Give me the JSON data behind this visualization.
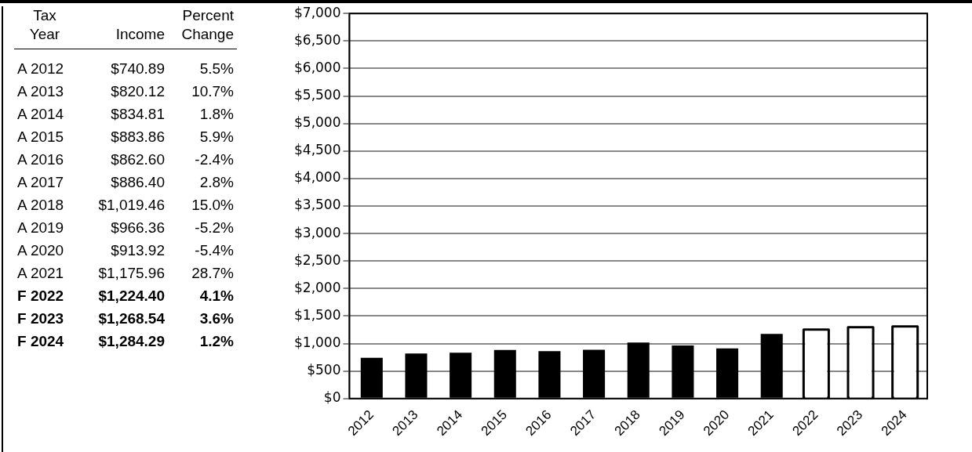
{
  "chart_data": [
    {
      "type": "other",
      "annotations": [
        "Tax Year",
        "Income",
        "Percent Change",
        "A 2012",
        "$740.89",
        "5.5%",
        "A 2013",
        "$820.12",
        "10.7%",
        "A 2014",
        "$834.81",
        "1.8%",
        "A 2015",
        "$883.86",
        "5.9%",
        "A 2016",
        "$862.60",
        "-2.4%",
        "A 2017",
        "$886.40",
        "2.8%",
        "A 2018",
        "$1,019.46",
        "15.0%",
        "A 2019",
        "$966.36",
        "-5.2%",
        "A 2020",
        "$913.92",
        "-5.4%",
        "A 2021",
        "$1,175.96",
        "28.7%",
        "F 2022",
        "$1,224.40",
        "4.1%",
        "F 2023",
        "$1,268.54",
        "3.6%",
        "F 2024",
        "$1,284.29",
        "1.2%"
      ]
    },
    {
      "type": "bar",
      "categories": [
        "2012",
        "2013",
        "2014",
        "2015",
        "2016",
        "2017",
        "2018",
        "2019",
        "2020",
        "2021",
        "2022",
        "2023",
        "2024"
      ],
      "values": [
        740.89,
        820.12,
        834.81,
        883.86,
        862.6,
        886.4,
        1019.46,
        966.36,
        913.92,
        1175.96,
        1224.4,
        1268.54,
        1284.29
      ],
      "colors": [
        "#000000",
        "#000000",
        "#000000",
        "#000000",
        "#000000",
        "#000000",
        "#000000",
        "#000000",
        "#000000",
        "#000000",
        "#ffffff",
        "#ffffff",
        "#ffffff"
      ],
      "ylim": [
        0,
        7000
      ],
      "yticks": [
        {
          "value": 0,
          "label": "$0"
        },
        {
          "value": 500,
          "label": "$500"
        },
        {
          "value": 1000,
          "label": "$1,000"
        },
        {
          "value": 1500,
          "label": "$1,500"
        },
        {
          "value": 2000,
          "label": "$2,000"
        },
        {
          "value": 2500,
          "label": "$2,500"
        },
        {
          "value": 3000,
          "label": "$3,000"
        },
        {
          "value": 3500,
          "label": "$3,500"
        },
        {
          "value": 4000,
          "label": "$4,000"
        },
        {
          "value": 4500,
          "label": "$4,500"
        },
        {
          "value": 5000,
          "label": "$5,000"
        },
        {
          "value": 5500,
          "label": "$5,500"
        },
        {
          "value": 6000,
          "label": "$6,000"
        },
        {
          "value": 6500,
          "label": "$6,500"
        },
        {
          "value": 7000,
          "label": "$7,000"
        }
      ],
      "grid": "y",
      "legend": false
    }
  ]
}
